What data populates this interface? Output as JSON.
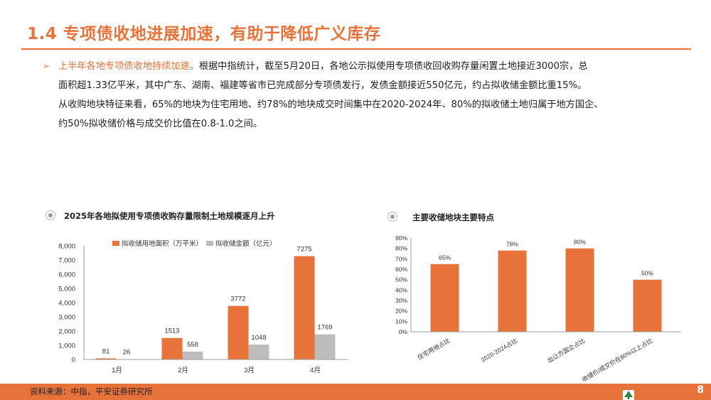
{
  "slide": {
    "title": "1.4 专项债收地进展加速，有助于降低广义库存",
    "bullet_marker": "➢",
    "bullet_lead": "上半年各地专项债收地持续加速。",
    "bullet_lines": [
      "根据中指统计，截至5月20日，各地公示拟使用专项债收回收购存量闲置土地接近3000宗，总",
      "面积超1.33亿平米，其中广东、湖南、福建等省市已完成部分专项债发行，发债金额接近550亿元，约占拟收储金额比重15%。",
      "从收购地块特征来看，65%的地块为住宅用地、约78%的地块成交时间集中在2020-2024年、80%的拟收储土地归属于地方国企、",
      "约50%拟收储价格与成交价比值在0.8-1.0之间。"
    ]
  },
  "footer": {
    "source": "资料来源：中指，平安证券研究所",
    "page_number": "8"
  },
  "colors": {
    "accent": "#E8733A",
    "gray_series": "#BDBDBD"
  },
  "chart_data": [
    {
      "type": "bar",
      "title": "2025年各地拟使用专项债收购存量限制土地规模逐月上升",
      "categories": [
        "1月",
        "2月",
        "3月",
        "4月"
      ],
      "series": [
        {
          "name": "拟收储用地面积（万平米）",
          "values": [
            81,
            1513,
            3772,
            7275
          ],
          "color": "#E8733A"
        },
        {
          "name": "拟收储金额（亿元）",
          "values": [
            26,
            558,
            1048,
            1769
          ],
          "color": "#BDBDBD"
        }
      ],
      "ylim": [
        0,
        8000
      ],
      "yticks": [
        "0",
        "1,000",
        "2,000",
        "3,000",
        "4,000",
        "5,000",
        "6,000",
        "7,000",
        "8,000"
      ],
      "value_labels": [
        [
          "81",
          "1513",
          "3772",
          "7275"
        ],
        [
          "26",
          "558",
          "1048",
          "1769"
        ]
      ],
      "legend": "top",
      "grid": false
    },
    {
      "type": "bar",
      "title": "主要收储地块主要特点",
      "categories": [
        "住宅用地占比",
        "2020-2024占比",
        "出让方国企占比",
        "收储价/成交价在80%以上占比"
      ],
      "values": [
        65,
        78,
        80,
        50
      ],
      "value_labels": [
        "65%",
        "78%",
        "80%",
        "50%"
      ],
      "ylim": [
        0,
        90
      ],
      "yticks": [
        "0%",
        "10%",
        "20%",
        "30%",
        "40%",
        "50%",
        "60%",
        "70%",
        "80%",
        "90%"
      ],
      "grid": false
    }
  ]
}
